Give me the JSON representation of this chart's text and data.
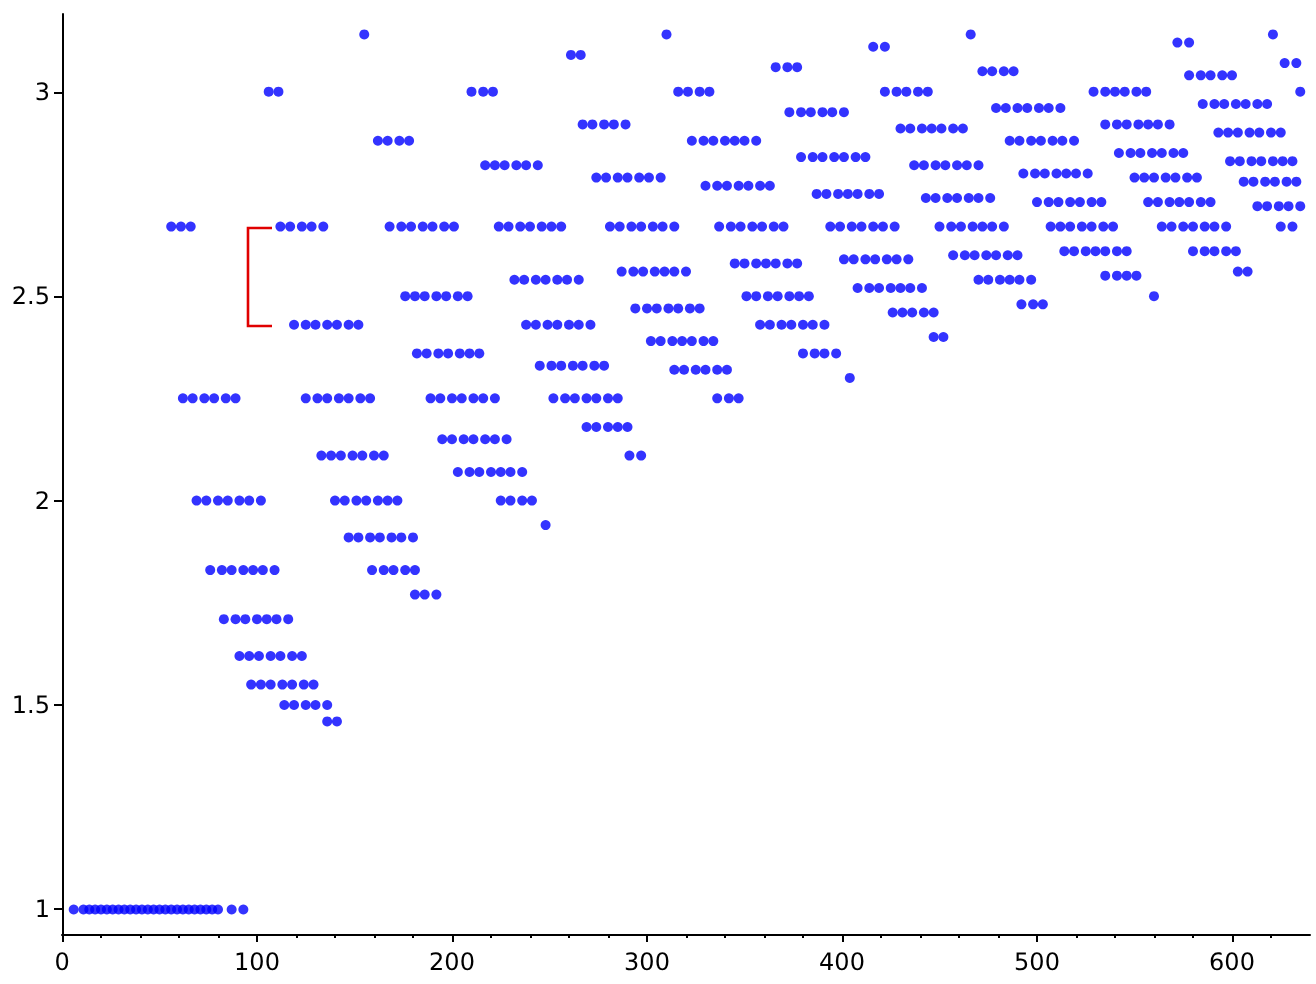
{
  "chart_data": {
    "type": "scatter",
    "color": "#0000ff",
    "marker": "circle",
    "grid": false,
    "xlim": [
      0,
      640
    ],
    "ylim": [
      0.94,
      3.19
    ],
    "xticks": [
      0,
      100,
      200,
      300,
      400,
      500,
      600
    ],
    "yticks": [
      1,
      1.5,
      2,
      2.5,
      3
    ],
    "series": [
      {
        "x": [
          6,
          11,
          14,
          17,
          20,
          23,
          26,
          29,
          32,
          35,
          38,
          41,
          44,
          47,
          50,
          53,
          56,
          59,
          62,
          65,
          68,
          71,
          74,
          77,
          80,
          87,
          93
        ],
        "values": [
          1,
          1,
          1,
          1,
          1,
          1,
          1,
          1,
          1,
          1,
          1,
          1,
          1,
          1,
          1,
          1,
          1,
          1,
          1,
          1,
          1,
          1,
          1,
          1,
          1,
          1,
          1
        ]
      },
      {
        "x": [
          155,
          310,
          466,
          621
        ],
        "values": [
          3.14,
          3.14,
          3.14,
          3.14
        ]
      },
      {
        "x": [
          572,
          578
        ],
        "values": [
          3.12,
          3.12
        ]
      },
      {
        "x": [
          416,
          422
        ],
        "values": [
          3.11,
          3.11
        ]
      },
      {
        "x": [
          261,
          266
        ],
        "values": [
          3.09,
          3.09
        ]
      },
      {
        "x": [
          627,
          633
        ],
        "values": [
          3.07,
          3.07
        ]
      },
      {
        "x": [
          366,
          372,
          377
        ],
        "values": [
          3.06,
          3.06,
          3.06
        ]
      },
      {
        "x": [
          472,
          477,
          483,
          488
        ],
        "values": [
          3.05,
          3.05,
          3.05,
          3.05
        ]
      },
      {
        "x": [
          578,
          584,
          589,
          595,
          600
        ],
        "values": [
          3.04,
          3.04,
          3.04,
          3.04,
          3.04
        ]
      },
      {
        "x": [
          106,
          111,
          210,
          216,
          221,
          316,
          321,
          327,
          332,
          422,
          428,
          433,
          439,
          444,
          529,
          535,
          540,
          545,
          551,
          556,
          635
        ],
        "values": [
          3,
          3,
          3,
          3,
          3,
          3,
          3,
          3,
          3,
          3,
          3,
          3,
          3,
          3,
          3,
          3,
          3,
          3,
          3,
          3,
          3
        ]
      },
      {
        "x": [
          585,
          591,
          596,
          602,
          607,
          613,
          618
        ],
        "values": [
          2.97,
          2.97,
          2.97,
          2.97,
          2.97,
          2.97,
          2.97
        ]
      },
      {
        "x": [
          479,
          484,
          490,
          495,
          501,
          506,
          512
        ],
        "values": [
          2.96,
          2.96,
          2.96,
          2.96,
          2.96,
          2.96,
          2.96
        ]
      },
      {
        "x": [
          373,
          379,
          384,
          390,
          395,
          401
        ],
        "values": [
          2.95,
          2.95,
          2.95,
          2.95,
          2.95,
          2.95
        ]
      },
      {
        "x": [
          267,
          272,
          278,
          283,
          289,
          535,
          541,
          546,
          552,
          557,
          562,
          568
        ],
        "values": [
          2.92,
          2.92,
          2.92,
          2.92,
          2.92,
          2.92,
          2.92,
          2.92,
          2.92,
          2.92,
          2.92,
          2.92
        ]
      },
      {
        "x": [
          430,
          435,
          441,
          446,
          451,
          457,
          462
        ],
        "values": [
          2.91,
          2.91,
          2.91,
          2.91,
          2.91,
          2.91,
          2.91
        ]
      },
      {
        "x": [
          593,
          598,
          603,
          609,
          614,
          620,
          625
        ],
        "values": [
          2.9,
          2.9,
          2.9,
          2.9,
          2.9,
          2.9,
          2.9
        ]
      },
      {
        "x": [
          162,
          167,
          173,
          178,
          323,
          329,
          334,
          340,
          345,
          350,
          356,
          486,
          491,
          497,
          502,
          508,
          513,
          519
        ],
        "values": [
          2.88,
          2.88,
          2.88,
          2.88,
          2.88,
          2.88,
          2.88,
          2.88,
          2.88,
          2.88,
          2.88,
          2.88,
          2.88,
          2.88,
          2.88,
          2.88,
          2.88,
          2.88
        ]
      },
      {
        "x": [
          542,
          548,
          553,
          559,
          564,
          570,
          575
        ],
        "values": [
          2.85,
          2.85,
          2.85,
          2.85,
          2.85,
          2.85,
          2.85
        ]
      },
      {
        "x": [
          379,
          385,
          390,
          396,
          401,
          407,
          412
        ],
        "values": [
          2.84,
          2.84,
          2.84,
          2.84,
          2.84,
          2.84,
          2.84
        ]
      },
      {
        "x": [
          599,
          604,
          610,
          615,
          621,
          626,
          631
        ],
        "values": [
          2.83,
          2.83,
          2.83,
          2.83,
          2.83,
          2.83,
          2.83
        ]
      },
      {
        "x": [
          217,
          222,
          227,
          233,
          238,
          244,
          437,
          442,
          448,
          453,
          459,
          464,
          470
        ],
        "values": [
          2.82,
          2.82,
          2.82,
          2.82,
          2.82,
          2.82,
          2.82,
          2.82,
          2.82,
          2.82,
          2.82,
          2.82,
          2.82
        ]
      },
      {
        "x": [
          493,
          499,
          504,
          510,
          515,
          520,
          526
        ],
        "values": [
          2.8,
          2.8,
          2.8,
          2.8,
          2.8,
          2.8,
          2.8
        ]
      },
      {
        "x": [
          274,
          279,
          285,
          290,
          296,
          301,
          307,
          550,
          555,
          560,
          566,
          571,
          577,
          582
        ],
        "values": [
          2.79,
          2.79,
          2.79,
          2.79,
          2.79,
          2.79,
          2.79,
          2.79,
          2.79,
          2.79,
          2.79,
          2.79,
          2.79,
          2.79
        ]
      },
      {
        "x": [
          606,
          611,
          617,
          622,
          628,
          633
        ],
        "values": [
          2.78,
          2.78,
          2.78,
          2.78,
          2.78,
          2.78
        ]
      },
      {
        "x": [
          330,
          336,
          341,
          347,
          352,
          358,
          363
        ],
        "values": [
          2.77,
          2.77,
          2.77,
          2.77,
          2.77,
          2.77,
          2.77
        ]
      },
      {
        "x": [
          387,
          392,
          398,
          403,
          408,
          414,
          419
        ],
        "values": [
          2.75,
          2.75,
          2.75,
          2.75,
          2.75,
          2.75,
          2.75
        ]
      },
      {
        "x": [
          443,
          448,
          454,
          459,
          465,
          470,
          476
        ],
        "values": [
          2.74,
          2.74,
          2.74,
          2.74,
          2.74,
          2.74,
          2.74
        ]
      },
      {
        "x": [
          500,
          506,
          511,
          517,
          522,
          528,
          533,
          557,
          562,
          568,
          573,
          578,
          584,
          589
        ],
        "values": [
          2.73,
          2.73,
          2.73,
          2.73,
          2.73,
          2.73,
          2.73,
          2.73,
          2.73,
          2.73,
          2.73,
          2.73,
          2.73,
          2.73
        ]
      },
      {
        "x": [
          613,
          618,
          624,
          629,
          635
        ],
        "values": [
          2.72,
          2.72,
          2.72,
          2.72,
          2.72
        ]
      },
      {
        "x": [
          56,
          61,
          66,
          112,
          117,
          123,
          128,
          134,
          168,
          174,
          179,
          185,
          190,
          196,
          201,
          224,
          229,
          235,
          240,
          246,
          251,
          256,
          281,
          286,
          292,
          297,
          303,
          308,
          314,
          337,
          343,
          348,
          354,
          359,
          365,
          370,
          394,
          399,
          405,
          410,
          416,
          421,
          427,
          450,
          456,
          461,
          467,
          472,
          477,
          483,
          507,
          512,
          517,
          523,
          528,
          534,
          539,
          564,
          569,
          575,
          580,
          586,
          591,
          597,
          625,
          631
        ],
        "values": [
          2.67,
          2.67,
          2.67,
          2.67,
          2.67,
          2.67,
          2.67,
          2.67,
          2.67,
          2.67,
          2.67,
          2.67,
          2.67,
          2.67,
          2.67,
          2.67,
          2.67,
          2.67,
          2.67,
          2.67,
          2.67,
          2.67,
          2.67,
          2.67,
          2.67,
          2.67,
          2.67,
          2.67,
          2.67,
          2.67,
          2.67,
          2.67,
          2.67,
          2.67,
          2.67,
          2.67,
          2.67,
          2.67,
          2.67,
          2.67,
          2.67,
          2.67,
          2.67,
          2.67,
          2.67,
          2.67,
          2.67,
          2.67,
          2.67,
          2.67,
          2.67,
          2.67,
          2.67,
          2.67,
          2.67,
          2.67,
          2.67,
          2.67,
          2.67,
          2.67,
          2.67,
          2.67,
          2.67,
          2.67,
          2.67,
          2.67
        ]
      },
      {
        "x": [
          514,
          519,
          525,
          530,
          535,
          541,
          546,
          580,
          586,
          591,
          597,
          602
        ],
        "values": [
          2.61,
          2.61,
          2.61,
          2.61,
          2.61,
          2.61,
          2.61,
          2.61,
          2.61,
          2.61,
          2.61,
          2.61
        ]
      },
      {
        "x": [
          457,
          463,
          468,
          474,
          479,
          485,
          490
        ],
        "values": [
          2.6,
          2.6,
          2.6,
          2.6,
          2.6,
          2.6,
          2.6
        ]
      },
      {
        "x": [
          401,
          406,
          412,
          417,
          423,
          428,
          434
        ],
        "values": [
          2.59,
          2.59,
          2.59,
          2.59,
          2.59,
          2.59,
          2.59
        ]
      },
      {
        "x": [
          345,
          350,
          356,
          361,
          366,
          372,
          377
        ],
        "values": [
          2.58,
          2.58,
          2.58,
          2.58,
          2.58,
          2.58,
          2.58
        ]
      },
      {
        "x": [
          287,
          293,
          298,
          304,
          309,
          314,
          320,
          603,
          608
        ],
        "values": [
          2.56,
          2.56,
          2.56,
          2.56,
          2.56,
          2.56,
          2.56,
          2.56,
          2.56
        ]
      },
      {
        "x": [
          535,
          541,
          546,
          551
        ],
        "values": [
          2.55,
          2.55,
          2.55,
          2.55
        ]
      },
      {
        "x": [
          232,
          237,
          243,
          248,
          254,
          259,
          265,
          470,
          475,
          481,
          486,
          491,
          497
        ],
        "values": [
          2.54,
          2.54,
          2.54,
          2.54,
          2.54,
          2.54,
          2.54,
          2.54,
          2.54,
          2.54,
          2.54,
          2.54,
          2.54
        ]
      },
      {
        "x": [
          408,
          414,
          419,
          425,
          430,
          435,
          441
        ],
        "values": [
          2.52,
          2.52,
          2.52,
          2.52,
          2.52,
          2.52,
          2.52
        ]
      },
      {
        "x": [
          176,
          181,
          186,
          192,
          197,
          203,
          208,
          351,
          356,
          362,
          367,
          373,
          378,
          383,
          560
        ],
        "values": [
          2.5,
          2.5,
          2.5,
          2.5,
          2.5,
          2.5,
          2.5,
          2.5,
          2.5,
          2.5,
          2.5,
          2.5,
          2.5,
          2.5,
          2.5
        ]
      },
      {
        "x": [
          492,
          498,
          503
        ],
        "values": [
          2.48,
          2.48,
          2.48
        ]
      },
      {
        "x": [
          294,
          300,
          305,
          311,
          316,
          322,
          327
        ],
        "values": [
          2.47,
          2.47,
          2.47,
          2.47,
          2.47,
          2.47,
          2.47
        ]
      },
      {
        "x": [
          426,
          431,
          436,
          442,
          447
        ],
        "values": [
          2.46,
          2.46,
          2.46,
          2.46,
          2.46
        ]
      },
      {
        "x": [
          119,
          125,
          130,
          136,
          141,
          147,
          152,
          238,
          243,
          249,
          254,
          260,
          265,
          271,
          358,
          363,
          369,
          374,
          380,
          385,
          391
        ],
        "values": [
          2.43,
          2.43,
          2.43,
          2.43,
          2.43,
          2.43,
          2.43,
          2.43,
          2.43,
          2.43,
          2.43,
          2.43,
          2.43,
          2.43,
          2.43,
          2.43,
          2.43,
          2.43,
          2.43,
          2.43,
          2.43
        ]
      },
      {
        "x": [
          447,
          452
        ],
        "values": [
          2.4,
          2.4
        ]
      },
      {
        "x": [
          302,
          307,
          313,
          318,
          323,
          329,
          334
        ],
        "values": [
          2.39,
          2.39,
          2.39,
          2.39,
          2.39,
          2.39,
          2.39
        ]
      },
      {
        "x": [
          182,
          187,
          193,
          198,
          204,
          209,
          214,
          380,
          386,
          391,
          397
        ],
        "values": [
          2.36,
          2.36,
          2.36,
          2.36,
          2.36,
          2.36,
          2.36,
          2.36,
          2.36,
          2.36,
          2.36
        ]
      },
      {
        "x": [
          245,
          251,
          256,
          262,
          267,
          273,
          278
        ],
        "values": [
          2.33,
          2.33,
          2.33,
          2.33,
          2.33,
          2.33,
          2.33
        ]
      },
      {
        "x": [
          314,
          319,
          325,
          330,
          336,
          341
        ],
        "values": [
          2.32,
          2.32,
          2.32,
          2.32,
          2.32,
          2.32
        ]
      },
      {
        "x": [
          404
        ],
        "values": [
          2.3
        ]
      },
      {
        "x": [
          62,
          67,
          73,
          78,
          84,
          89,
          125,
          131,
          136,
          142,
          147,
          153,
          158,
          189,
          194,
          200,
          205,
          211,
          216,
          222,
          252,
          258,
          263,
          269,
          274,
          280,
          285,
          336,
          342,
          347
        ],
        "values": [
          2.25,
          2.25,
          2.25,
          2.25,
          2.25,
          2.25,
          2.25,
          2.25,
          2.25,
          2.25,
          2.25,
          2.25,
          2.25,
          2.25,
          2.25,
          2.25,
          2.25,
          2.25,
          2.25,
          2.25,
          2.25,
          2.25,
          2.25,
          2.25,
          2.25,
          2.25,
          2.25,
          2.25,
          2.25,
          2.25
        ]
      },
      {
        "x": [
          269,
          274,
          280,
          285,
          290
        ],
        "values": [
          2.18,
          2.18,
          2.18,
          2.18,
          2.18
        ]
      },
      {
        "x": [
          195,
          200,
          206,
          211,
          217,
          222,
          228
        ],
        "values": [
          2.15,
          2.15,
          2.15,
          2.15,
          2.15,
          2.15,
          2.15
        ]
      },
      {
        "x": [
          133,
          138,
          143,
          149,
          154,
          160,
          165,
          291,
          297
        ],
        "values": [
          2.11,
          2.11,
          2.11,
          2.11,
          2.11,
          2.11,
          2.11,
          2.11,
          2.11
        ]
      },
      {
        "x": [
          203,
          209,
          214,
          220,
          225,
          230,
          236
        ],
        "values": [
          2.07,
          2.07,
          2.07,
          2.07,
          2.07,
          2.07,
          2.07
        ]
      },
      {
        "x": [
          69,
          74,
          80,
          85,
          91,
          96,
          102,
          140,
          145,
          151,
          156,
          162,
          167,
          172,
          225,
          230,
          236,
          241
        ],
        "values": [
          2,
          2,
          2,
          2,
          2,
          2,
          2,
          2,
          2,
          2,
          2,
          2,
          2,
          2,
          2,
          2,
          2,
          2
        ]
      },
      {
        "x": [
          248
        ],
        "values": [
          1.94
        ]
      },
      {
        "x": [
          147,
          152,
          158,
          163,
          169,
          174,
          180
        ],
        "values": [
          1.91,
          1.91,
          1.91,
          1.91,
          1.91,
          1.91,
          1.91
        ]
      },
      {
        "x": [
          76,
          82,
          87,
          93,
          98,
          103,
          109,
          159,
          165,
          170,
          176,
          181
        ],
        "values": [
          1.83,
          1.83,
          1.83,
          1.83,
          1.83,
          1.83,
          1.83,
          1.83,
          1.83,
          1.83,
          1.83,
          1.83
        ]
      },
      {
        "x": [
          181,
          186,
          192
        ],
        "values": [
          1.77,
          1.77,
          1.77
        ]
      },
      {
        "x": [
          83,
          89,
          94,
          100,
          105,
          110,
          116
        ],
        "values": [
          1.71,
          1.71,
          1.71,
          1.71,
          1.71,
          1.71,
          1.71
        ]
      },
      {
        "x": [
          91,
          96,
          101,
          107,
          112,
          118,
          123
        ],
        "values": [
          1.62,
          1.62,
          1.62,
          1.62,
          1.62,
          1.62,
          1.62
        ]
      },
      {
        "x": [
          97,
          102,
          107,
          113,
          118,
          124,
          129
        ],
        "values": [
          1.55,
          1.55,
          1.55,
          1.55,
          1.55,
          1.55,
          1.55
        ]
      },
      {
        "x": [
          114,
          119,
          125,
          130,
          136
        ],
        "values": [
          1.5,
          1.5,
          1.5,
          1.5,
          1.5
        ]
      },
      {
        "x": [
          136,
          141
        ],
        "values": [
          1.46,
          1.46
        ]
      }
    ]
  }
}
